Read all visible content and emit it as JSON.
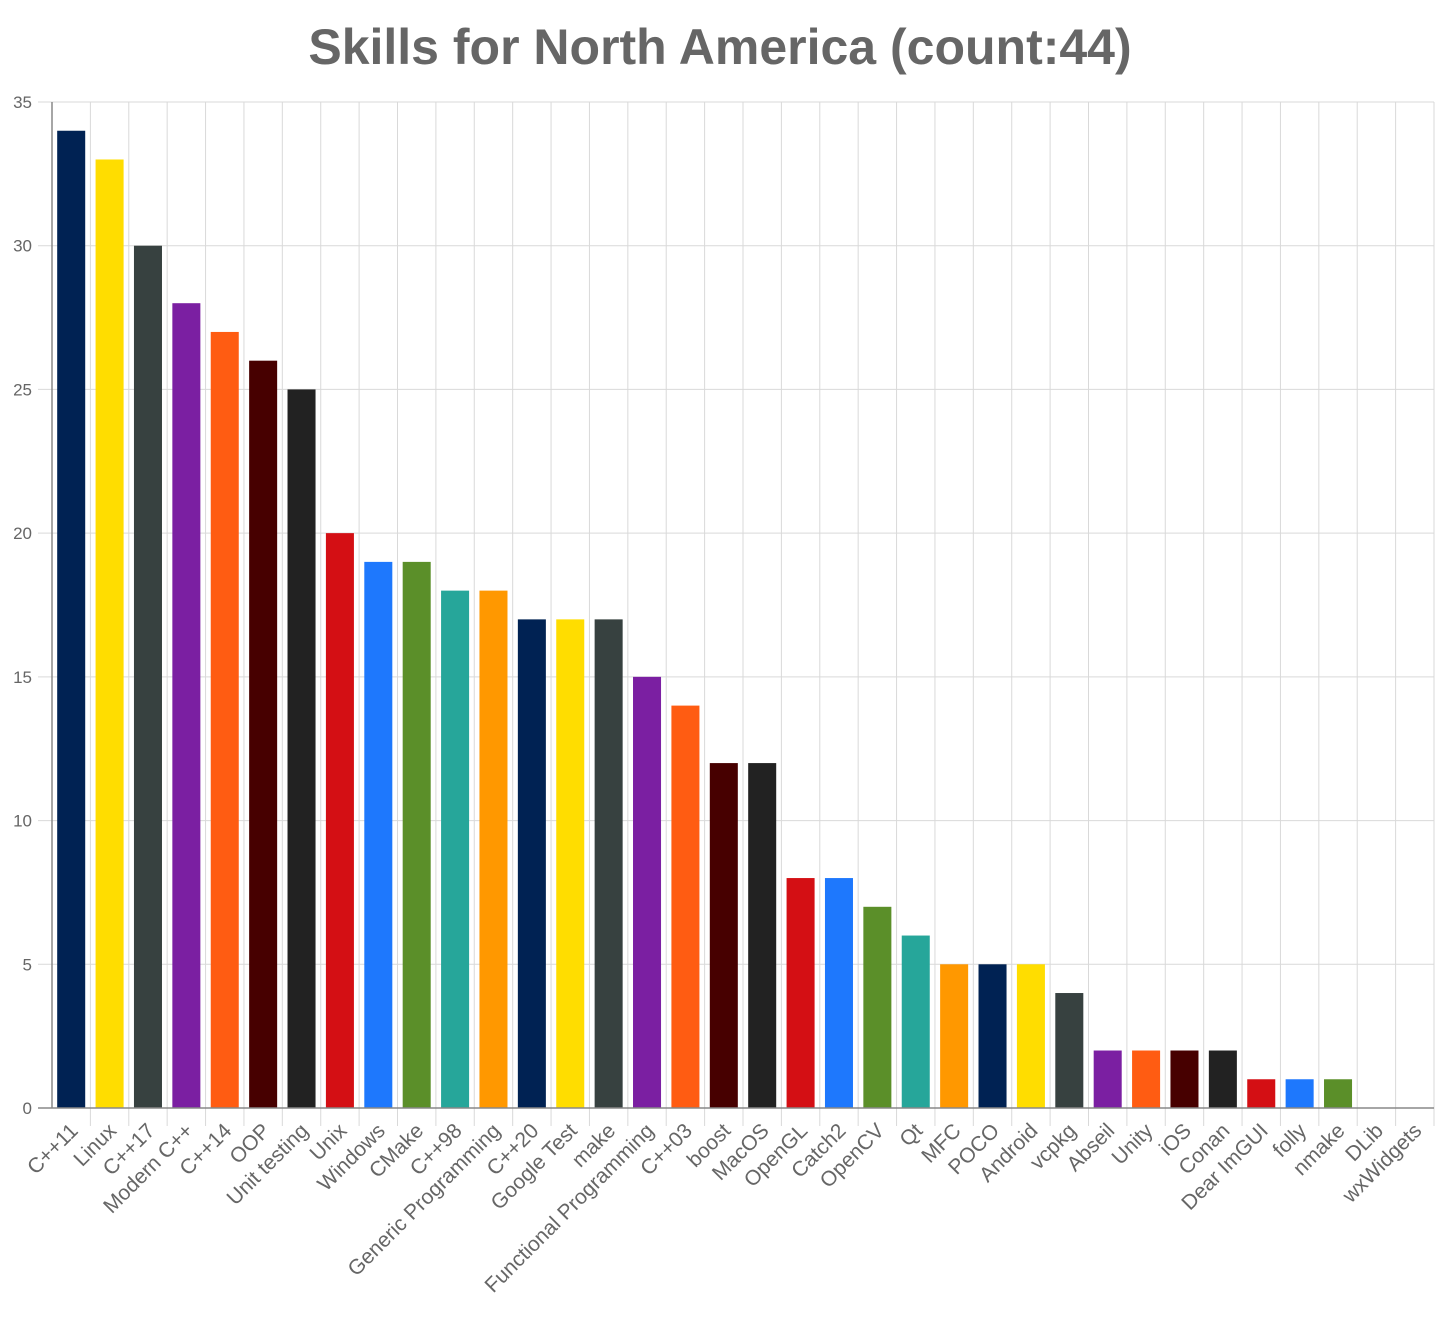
{
  "chart_data": {
    "type": "bar",
    "title": "Skills for North America (count:44)",
    "xlabel": "",
    "ylabel": "",
    "ylim": [
      0,
      35
    ],
    "yticks": [
      0,
      5,
      10,
      15,
      20,
      25,
      30,
      35
    ],
    "grid": true,
    "legend": "none",
    "categories": [
      "C++11",
      "Linux",
      "C++17",
      "Modern C++",
      "C++14",
      "OOP",
      "Unit testing",
      "Unix",
      "Windows",
      "CMake",
      "C++98",
      "Generic Programming",
      "C++20",
      "Google Test",
      "make",
      "Functional Programming",
      "C++03",
      "boost",
      "MacOS",
      "OpenGL",
      "Catch2",
      "OpenCV",
      "Qt",
      "MFC",
      "POCO",
      "Android",
      "vcpkg",
      "Abseil",
      "Unity",
      "iOS",
      "Conan",
      "Dear ImGUI",
      "folly",
      "nmake",
      "DLib",
      "wxWidgets"
    ],
    "values": [
      34,
      33,
      30,
      28,
      27,
      26,
      25,
      20,
      19,
      19,
      18,
      18,
      17,
      17,
      17,
      15,
      14,
      12,
      12,
      8,
      8,
      7,
      6,
      5,
      5,
      5,
      4,
      2,
      2,
      2,
      2,
      1,
      1,
      1,
      0,
      0
    ],
    "colors": [
      "#002253",
      "#ffdd00",
      "#374140",
      "#7b1fa2",
      "#ff5c12",
      "#470000",
      "#222222",
      "#d40f14",
      "#1e78fd",
      "#5b8f29",
      "#26a69a",
      "#ff9800"
    ]
  }
}
